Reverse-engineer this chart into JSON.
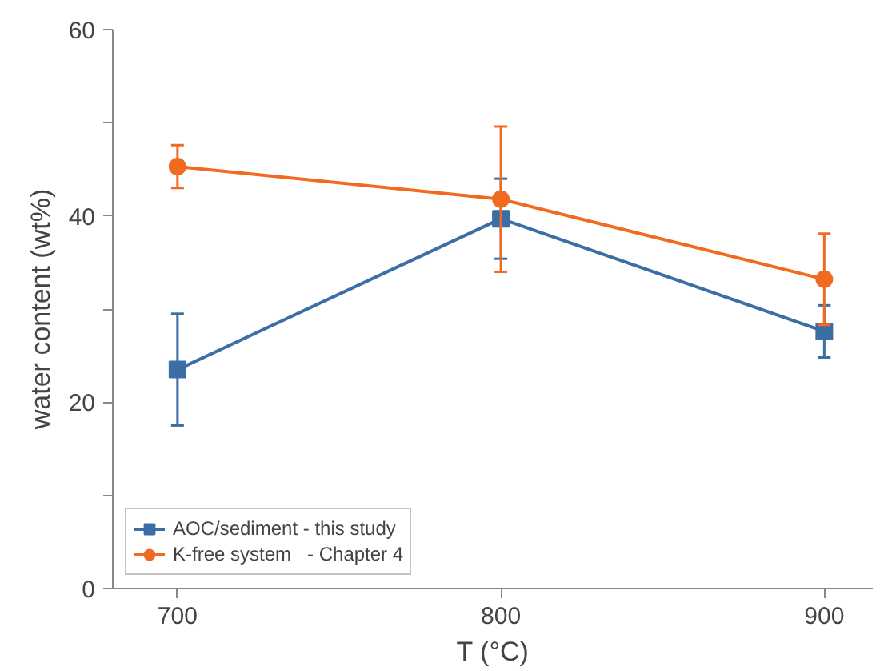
{
  "chart_data": {
    "type": "line",
    "xlabel": "T (°C)",
    "ylabel": "water content (wt%)",
    "x": [
      700,
      800,
      900
    ],
    "xlim": [
      680,
      915
    ],
    "xticks": [
      700,
      800,
      900
    ],
    "ylim": [
      0,
      60
    ],
    "yticks": [
      0,
      {
        "value": 10,
        "label": null
      },
      20,
      {
        "value": 30,
        "label": null
      },
      40,
      {
        "value": 50,
        "label": null
      },
      60
    ],
    "grid": false,
    "legend": "bottom left",
    "series": [
      {
        "name": "AOC/sediment - this study",
        "color": "#3a6ea5",
        "marker": "square",
        "values": [
          23.5,
          39.7,
          27.6
        ],
        "errors": [
          6.0,
          4.3,
          2.8
        ]
      },
      {
        "name": "K-free system   - Chapter 4",
        "color": "#f26a22",
        "marker": "circle",
        "values": [
          45.3,
          41.8,
          33.2
        ],
        "errors": [
          2.3,
          7.8,
          4.9
        ]
      }
    ]
  }
}
